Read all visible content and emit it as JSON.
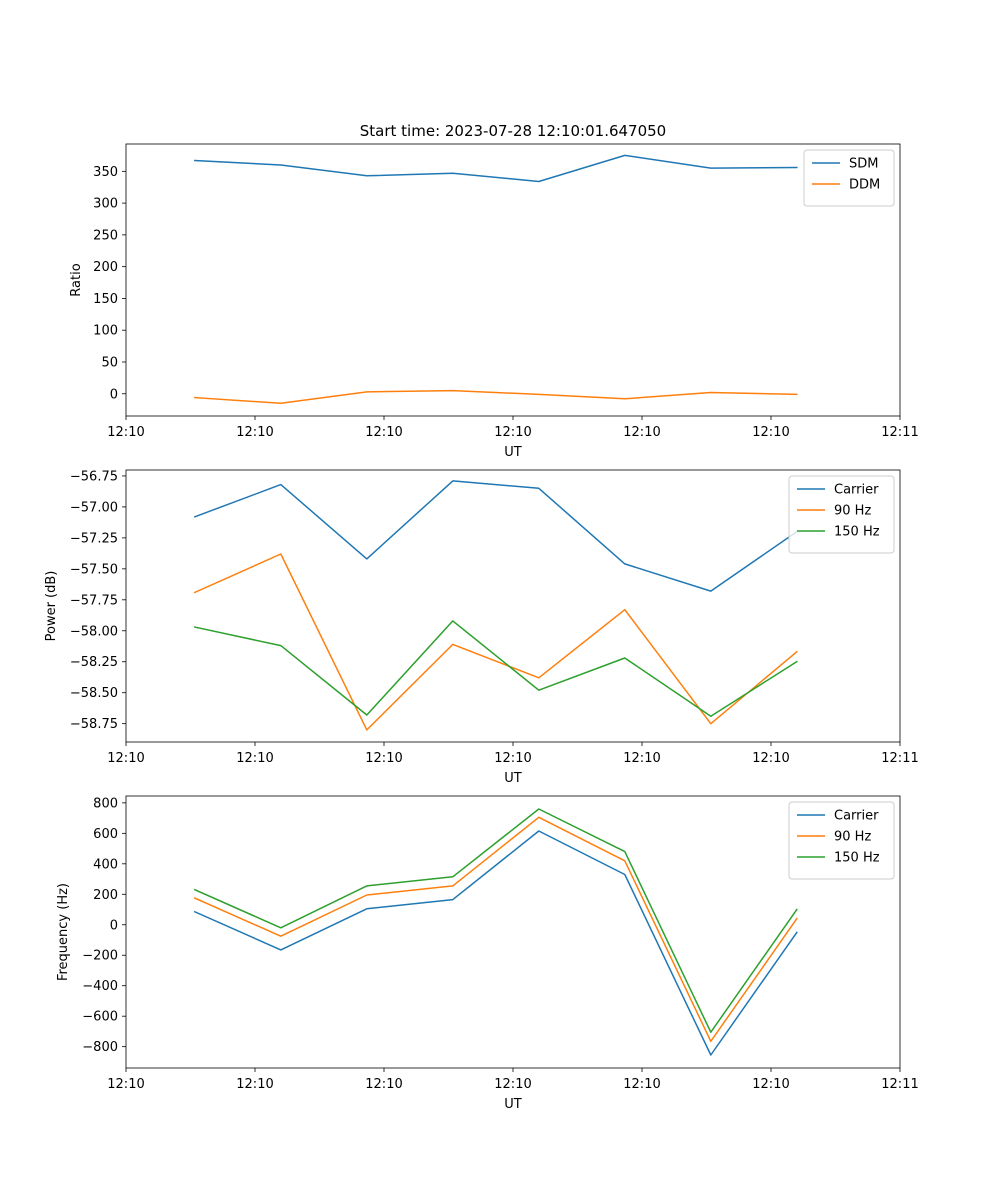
{
  "figure_title": "Start time: 2023-07-28 12:10:01.647050",
  "colors": {
    "blue": "#1f77b4",
    "orange": "#ff7f0e",
    "green": "#2ca02c"
  },
  "chart_data": [
    {
      "type": "line",
      "title": "Start time: 2023-07-28 12:10:01.647050",
      "xlabel": "UT",
      "ylabel": "Ratio",
      "x": [
        1,
        2,
        3,
        4,
        5,
        6,
        7,
        8
      ],
      "xlim": [
        0.2,
        9.2
      ],
      "xticks": [
        0.2,
        1.7,
        3.2,
        4.7,
        6.2,
        7.7,
        9.2
      ],
      "xtick_labels": [
        "12:10",
        "12:10",
        "12:10",
        "12:10",
        "12:10",
        "12:10",
        "12:11"
      ],
      "ylim": [
        -35,
        393
      ],
      "yticks": [
        0,
        50,
        100,
        150,
        200,
        250,
        300,
        350
      ],
      "ytick_labels": [
        "0",
        "50",
        "100",
        "150",
        "200",
        "250",
        "300",
        "350"
      ],
      "legend_position": "top-right",
      "series": [
        {
          "name": "SDM",
          "color": "#1f77b4",
          "values": [
            367,
            360,
            343,
            347,
            334,
            375,
            355,
            356
          ]
        },
        {
          "name": "DDM",
          "color": "#ff7f0e",
          "values": [
            -6,
            -15,
            3,
            5,
            -1,
            -8,
            2,
            -1
          ]
        }
      ]
    },
    {
      "type": "line",
      "xlabel": "UT",
      "ylabel": "Power (dB)",
      "x": [
        1,
        2,
        3,
        4,
        5,
        6,
        7,
        8
      ],
      "xlim": [
        0.2,
        9.2
      ],
      "xticks": [
        0.2,
        1.7,
        3.2,
        4.7,
        6.2,
        7.7,
        9.2
      ],
      "xtick_labels": [
        "12:10",
        "12:10",
        "12:10",
        "12:10",
        "12:10",
        "12:10",
        "12:11"
      ],
      "ylim": [
        -58.898,
        -56.702
      ],
      "yticks": [
        -58.75,
        -58.5,
        -58.25,
        -58.0,
        -57.75,
        -57.5,
        -57.25,
        -57.0,
        -56.75
      ],
      "ytick_labels": [
        "−58.75",
        "−58.50",
        "−58.25",
        "−58.00",
        "−57.75",
        "−57.50",
        "−57.25",
        "−57.00",
        "−56.75"
      ],
      "legend_position": "top-right",
      "series": [
        {
          "name": "Carrier",
          "color": "#1f77b4",
          "values": [
            -57.08,
            -56.82,
            -57.42,
            -56.79,
            -56.85,
            -57.46,
            -57.68,
            -57.2
          ]
        },
        {
          "name": "90 Hz",
          "color": "#ff7f0e",
          "values": [
            -57.69,
            -57.38,
            -58.8,
            -58.11,
            -58.38,
            -57.83,
            -58.75,
            -58.17
          ]
        },
        {
          "name": "150 Hz",
          "color": "#2ca02c",
          "values": [
            -57.97,
            -58.12,
            -58.68,
            -57.92,
            -58.48,
            -58.22,
            -58.69,
            -58.25
          ]
        }
      ]
    },
    {
      "type": "line",
      "xlabel": "UT",
      "ylabel": "Frequency (Hz)",
      "x": [
        1,
        2,
        3,
        4,
        5,
        6,
        7,
        8
      ],
      "xlim": [
        0.2,
        9.2
      ],
      "xticks": [
        0.2,
        1.7,
        3.2,
        4.7,
        6.2,
        7.7,
        9.2
      ],
      "xtick_labels": [
        "12:10",
        "12:10",
        "12:10",
        "12:10",
        "12:10",
        "12:10",
        "12:11"
      ],
      "ylim": [
        -940,
        845
      ],
      "yticks": [
        -800,
        -600,
        -400,
        -200,
        0,
        200,
        400,
        600,
        800
      ],
      "ytick_labels": [
        "−800",
        "−600",
        "−400",
        "−200",
        "0",
        "200",
        "400",
        "600",
        "800"
      ],
      "legend_position": "top-right",
      "series": [
        {
          "name": "Carrier",
          "color": "#1f77b4",
          "values": [
            85,
            -165,
            105,
            165,
            615,
            330,
            -855,
            -50
          ]
        },
        {
          "name": "90 Hz",
          "color": "#ff7f0e",
          "values": [
            175,
            -75,
            195,
            255,
            705,
            420,
            -765,
            40
          ]
        },
        {
          "name": "150 Hz",
          "color": "#2ca02c",
          "values": [
            230,
            -20,
            255,
            315,
            760,
            480,
            -705,
            100
          ]
        }
      ]
    }
  ]
}
